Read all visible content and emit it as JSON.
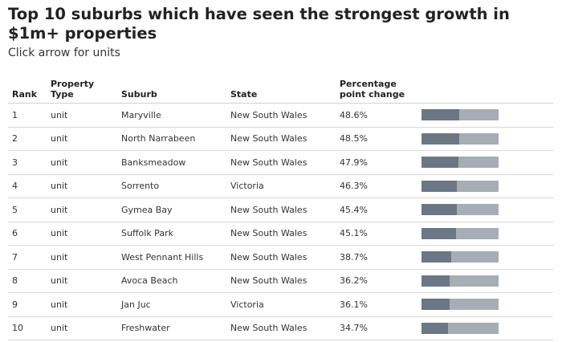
{
  "title": "Top 10 suburbs which have seen the strongest growth in $1m+ properties",
  "subtitle": "Click arrow for units",
  "headers": {
    "rank": "Rank",
    "type_line1": "Property",
    "type_line2": "Type",
    "suburb": "Suburb",
    "state": "State",
    "pct_line1": "Percentage",
    "pct_line2": "point change"
  },
  "colors": {
    "bar_fill": "#6b7785",
    "bar_track": "#a6adb4"
  },
  "rows": [
    {
      "rank": "1",
      "type": "unit",
      "suburb": "Maryville",
      "state": "New South Wales",
      "pct": "48.6%",
      "value": 48.6
    },
    {
      "rank": "2",
      "type": "unit",
      "suburb": "North Narrabeen",
      "state": "New South Wales",
      "pct": "48.5%",
      "value": 48.5
    },
    {
      "rank": "3",
      "type": "unit",
      "suburb": "Banksmeadow",
      "state": "New South Wales",
      "pct": "47.9%",
      "value": 47.9
    },
    {
      "rank": "4",
      "type": "unit",
      "suburb": "Sorrento",
      "state": "Victoria",
      "pct": "46.3%",
      "value": 46.3
    },
    {
      "rank": "5",
      "type": "unit",
      "suburb": "Gymea Bay",
      "state": "New South Wales",
      "pct": "45.4%",
      "value": 45.4
    },
    {
      "rank": "6",
      "type": "unit",
      "suburb": "Suffolk Park",
      "state": "New South Wales",
      "pct": "45.1%",
      "value": 45.1
    },
    {
      "rank": "7",
      "type": "unit",
      "suburb": "West Pennant Hills",
      "state": "New South Wales",
      "pct": "38.7%",
      "value": 38.7
    },
    {
      "rank": "8",
      "type": "unit",
      "suburb": "Avoca Beach",
      "state": "New South Wales",
      "pct": "36.2%",
      "value": 36.2
    },
    {
      "rank": "9",
      "type": "unit",
      "suburb": "Jan Juc",
      "state": "Victoria",
      "pct": "36.1%",
      "value": 36.1
    },
    {
      "rank": "10",
      "type": "unit",
      "suburb": "Freshwater",
      "state": "New South Wales",
      "pct": "34.7%",
      "value": 34.7
    }
  ]
}
